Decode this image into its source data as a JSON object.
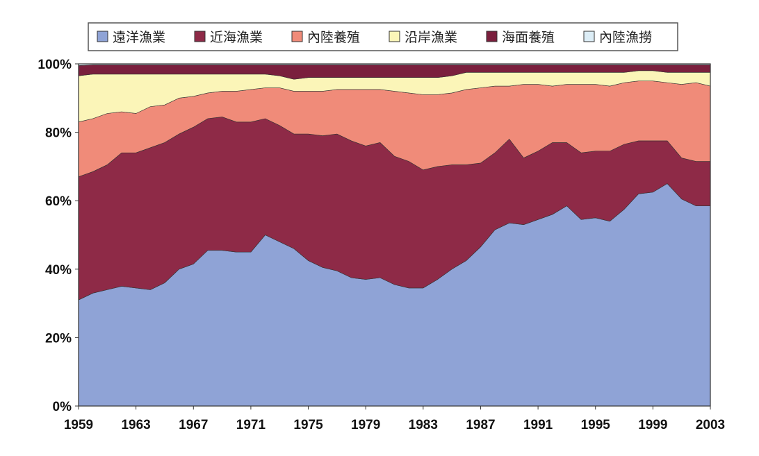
{
  "chart_data": {
    "type": "stacked_area",
    "x": [
      1959,
      1960,
      1961,
      1962,
      1963,
      1964,
      1965,
      1966,
      1967,
      1968,
      1969,
      1970,
      1971,
      1972,
      1973,
      1974,
      1975,
      1976,
      1977,
      1978,
      1979,
      1980,
      1981,
      1982,
      1983,
      1984,
      1985,
      1986,
      1987,
      1988,
      1989,
      1990,
      1991,
      1992,
      1993,
      1994,
      1995,
      1996,
      1997,
      1998,
      1999,
      2000,
      2001,
      2002,
      2003
    ],
    "series": [
      {
        "name": "遠洋漁業",
        "color": "#8fa3d6",
        "values": [
          31,
          33,
          34,
          35,
          34.5,
          34,
          36,
          40,
          41.5,
          45.5,
          45.5,
          45,
          45,
          50,
          48,
          46,
          42.5,
          40.5,
          39.5,
          37.5,
          37,
          37.5,
          35.5,
          34.5,
          34.5,
          37,
          40,
          42.5,
          46.5,
          51.5,
          53.5,
          53,
          54.5,
          56,
          58.5,
          54.5,
          55,
          54,
          57.5,
          62,
          62.5,
          65,
          60.5,
          58.5,
          58.5
        ]
      },
      {
        "name": "近海漁業",
        "color": "#8e2a47",
        "values": [
          36,
          35.5,
          36.5,
          39,
          39.5,
          41.5,
          41,
          39.5,
          40,
          38.5,
          39,
          38,
          38,
          34,
          34,
          33.5,
          37,
          38.5,
          40,
          40,
          39,
          39.5,
          37.5,
          37,
          34.5,
          33,
          30.5,
          28,
          24.5,
          22.5,
          24.5,
          19.5,
          20,
          21,
          18.5,
          19.5,
          19.5,
          20.5,
          19,
          15.5,
          15,
          12.5,
          12,
          13,
          13
        ]
      },
      {
        "name": "內陸養殖",
        "color": "#f08b79",
        "values": [
          16,
          15.5,
          15,
          12,
          11.5,
          12,
          11,
          10.5,
          9,
          7.5,
          7.5,
          9,
          9.5,
          9,
          11,
          12.5,
          12.5,
          13,
          13,
          15,
          16.5,
          15.5,
          19,
          20,
          22,
          21,
          21,
          22,
          22,
          19.5,
          15.5,
          21.5,
          19.5,
          16.5,
          17,
          20,
          19.5,
          19,
          18,
          17.5,
          17.5,
          17,
          21.5,
          23,
          22
        ]
      },
      {
        "name": "沿岸漁業",
        "color": "#fbf5b8",
        "values": [
          13.5,
          13,
          11.5,
          11,
          11.5,
          9.5,
          9,
          7,
          6.5,
          5.5,
          5,
          5,
          4.5,
          4,
          3.5,
          3.5,
          4,
          4,
          3.5,
          3.5,
          3.5,
          3.5,
          4,
          4.5,
          5,
          5,
          5,
          5,
          4.5,
          4,
          4,
          3.5,
          3.5,
          4,
          3.5,
          3.5,
          3.5,
          4,
          3,
          3,
          3,
          3,
          3.5,
          3,
          4
        ]
      },
      {
        "name": "海面養殖",
        "color": "#7a1f3d",
        "values": [
          3,
          2.7,
          2.7,
          2.7,
          2.7,
          2.7,
          2.7,
          2.7,
          2.7,
          2.7,
          2.7,
          2.7,
          2.7,
          2.7,
          3.2,
          4.2,
          3.7,
          3.7,
          3.7,
          3.7,
          3.7,
          3.7,
          3.7,
          3.7,
          3.7,
          3.7,
          3.2,
          2.2,
          2.2,
          2.2,
          2.2,
          2.2,
          2.2,
          2.2,
          2.2,
          2.2,
          2.2,
          2.2,
          2.2,
          1.7,
          1.7,
          2.2,
          2.2,
          2.2,
          2.2
        ]
      },
      {
        "name": "內陸漁撈",
        "color": "#dcedf6",
        "values": [
          0.5,
          0.3,
          0.3,
          0.3,
          0.3,
          0.3,
          0.3,
          0.3,
          0.3,
          0.3,
          0.3,
          0.3,
          0.3,
          0.3,
          0.3,
          0.3,
          0.3,
          0.3,
          0.3,
          0.3,
          0.3,
          0.3,
          0.3,
          0.3,
          0.3,
          0.3,
          0.3,
          0.3,
          0.3,
          0.3,
          0.3,
          0.3,
          0.3,
          0.3,
          0.3,
          0.3,
          0.3,
          0.3,
          0.3,
          0.3,
          0.3,
          0.3,
          0.3,
          0.3,
          0.3
        ]
      }
    ],
    "xlim": [
      1959,
      2003
    ],
    "xticks": [
      1959,
      1963,
      1967,
      1971,
      1975,
      1979,
      1983,
      1987,
      1991,
      1995,
      1999,
      2003
    ],
    "ylim": [
      0,
      100
    ],
    "yticks": [
      {
        "value": 0,
        "label": "0%"
      },
      {
        "value": 20,
        "label": "20%"
      },
      {
        "value": 40,
        "label": "40%"
      },
      {
        "value": 60,
        "label": "60%"
      },
      {
        "value": 80,
        "label": "80%"
      },
      {
        "value": 100,
        "label": "100%"
      }
    ]
  }
}
